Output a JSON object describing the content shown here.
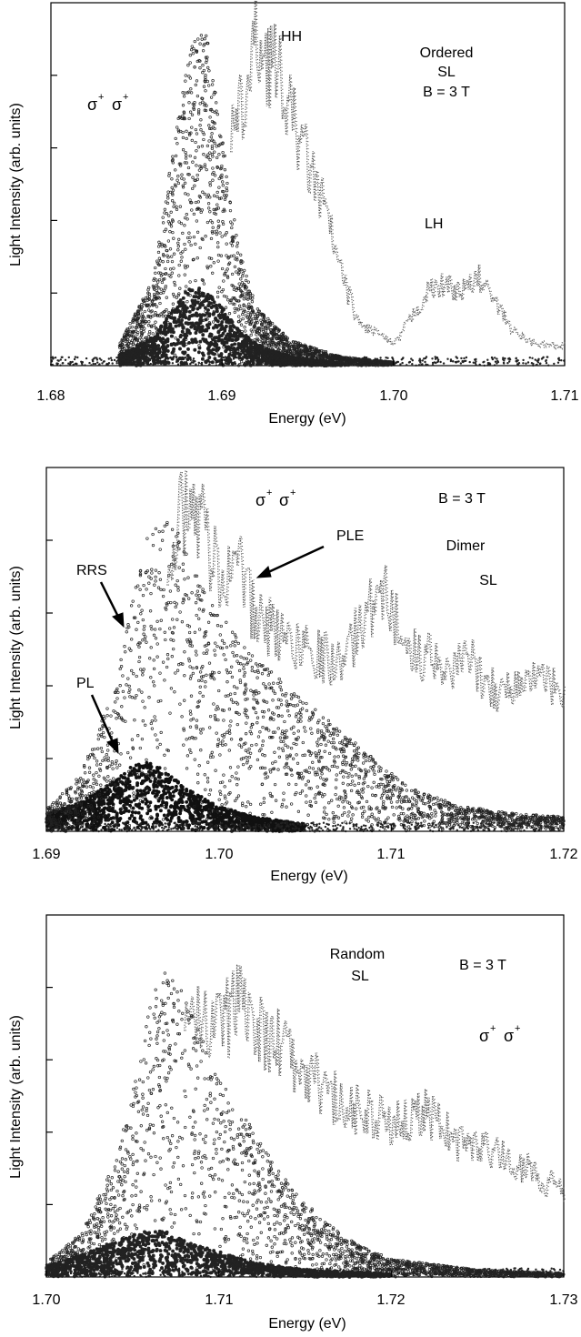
{
  "chart_data": [
    {
      "type": "scatter",
      "xlabel": "Energy (eV)",
      "ylabel": "Light Intensity (arb. units)",
      "xlim": [
        1.68,
        1.71
      ],
      "ylim": [
        0,
        5
      ],
      "xticks": [
        "1.68",
        "1.69",
        "1.70",
        "1.71"
      ],
      "yticks": [
        1,
        2,
        3,
        4
      ],
      "y_tick_labels_shown": false,
      "grid": false,
      "annotations": {
        "polarization": {
          "base": "σ",
          "sup": "+"
        },
        "hh": "HH",
        "lh": "LH",
        "sample": [
          "Ordered",
          "SL",
          "B = 3 T"
        ]
      },
      "series": [
        {
          "kind": "PL",
          "color": "#222222",
          "x": [
            1.684,
            1.686,
            1.687,
            1.688,
            1.6885,
            1.689,
            1.69,
            1.691,
            1.692,
            1.694,
            1.697
          ],
          "values": [
            0.15,
            0.4,
            0.75,
            1.05,
            1.1,
            1.05,
            0.8,
            0.5,
            0.3,
            0.12,
            0.03
          ]
        },
        {
          "kind": "RRS",
          "color": "#222222",
          "x": [
            1.684,
            1.686,
            1.687,
            1.688,
            1.6885,
            1.689,
            1.69,
            1.691,
            1.692,
            1.694,
            1.697,
            1.7
          ],
          "values": [
            0.3,
            1.2,
            2.8,
            4.2,
            4.6,
            4.7,
            3.2,
            1.6,
            0.8,
            0.35,
            0.12,
            0.05
          ]
        },
        {
          "kind": "PLE",
          "color": "#555555",
          "x": [
            1.6905,
            1.6915,
            1.692,
            1.6925,
            1.693,
            1.694,
            1.695,
            1.696,
            1.697,
            1.698,
            1.699,
            1.7,
            1.701,
            1.702,
            1.703,
            1.704,
            1.705,
            1.706,
            1.707,
            1.708,
            1.709,
            1.71
          ],
          "values": [
            3.3,
            4.1,
            4.9,
            4.6,
            4.5,
            3.7,
            3.0,
            2.3,
            1.3,
            0.6,
            0.5,
            0.3,
            0.7,
            1.1,
            1.2,
            1.1,
            1.3,
            0.9,
            0.5,
            0.35,
            0.3,
            0.3
          ]
        }
      ]
    },
    {
      "type": "scatter",
      "xlabel": "Energy (eV)",
      "ylabel": "Light Intensity (arb. units)",
      "xlim": [
        1.69,
        1.72
      ],
      "ylim": [
        0,
        5
      ],
      "xticks": [
        "1.69",
        "1.70",
        "1.71",
        "1.72"
      ],
      "yticks": [
        1,
        2,
        3,
        4
      ],
      "y_tick_labels_shown": false,
      "grid": false,
      "annotations": {
        "polarization": {
          "base": "σ",
          "sup": "+"
        },
        "b_field": "B = 3 T",
        "sample": [
          "Dimer",
          "SL"
        ],
        "ple": "PLE",
        "rrs": "RRS",
        "pl": "PL"
      },
      "series": [
        {
          "kind": "PL",
          "color": "#111111",
          "x": [
            1.69,
            1.692,
            1.694,
            1.695,
            1.696,
            1.697,
            1.698,
            1.7,
            1.702,
            1.705
          ],
          "values": [
            0.25,
            0.4,
            0.7,
            0.9,
            0.95,
            0.85,
            0.6,
            0.35,
            0.2,
            0.1
          ]
        },
        {
          "kind": "RRS",
          "color": "#222222",
          "x": [
            1.69,
            1.692,
            1.694,
            1.695,
            1.696,
            1.697,
            1.698,
            1.7,
            1.702,
            1.705,
            1.708,
            1.711,
            1.714,
            1.717,
            1.72
          ],
          "values": [
            0.3,
            0.8,
            2.0,
            3.2,
            4.2,
            4.3,
            4.0,
            3.0,
            2.4,
            1.8,
            1.2,
            0.6,
            0.35,
            0.25,
            0.2
          ]
        },
        {
          "kind": "PLE",
          "color": "#555555",
          "x": [
            1.697,
            1.698,
            1.699,
            1.7,
            1.701,
            1.702,
            1.703,
            1.704,
            1.705,
            1.706,
            1.707,
            1.708,
            1.709,
            1.71,
            1.711,
            1.712,
            1.713,
            1.714,
            1.715,
            1.716,
            1.717,
            1.718,
            1.719,
            1.72
          ],
          "values": [
            4.3,
            4.7,
            4.6,
            3.8,
            4.0,
            3.2,
            3.0,
            2.8,
            2.8,
            2.6,
            2.5,
            2.9,
            3.5,
            3.4,
            2.6,
            2.6,
            2.3,
            2.6,
            2.4,
            2.1,
            2.1,
            2.3,
            2.2,
            1.9
          ]
        }
      ]
    },
    {
      "type": "scatter",
      "xlabel": "Energy (eV)",
      "ylabel": "Light Intensity (arb. units)",
      "xlim": [
        1.7,
        1.73
      ],
      "ylim": [
        0,
        5
      ],
      "xticks": [
        "1.70",
        "1.71",
        "1.72",
        "1.73"
      ],
      "yticks": [
        1,
        2,
        3,
        4
      ],
      "y_tick_labels_shown": false,
      "grid": false,
      "annotations": {
        "polarization": {
          "base": "σ",
          "sup": "+"
        },
        "b_field": "B = 3 T",
        "sample": [
          "Random",
          "SL"
        ]
      },
      "series": [
        {
          "kind": "PL",
          "color": "#222222",
          "x": [
            1.7,
            1.702,
            1.704,
            1.706,
            1.707,
            1.708,
            1.71,
            1.712,
            1.715,
            1.72
          ],
          "values": [
            0.15,
            0.3,
            0.5,
            0.65,
            0.62,
            0.5,
            0.35,
            0.2,
            0.1,
            0.04
          ]
        },
        {
          "kind": "RRS",
          "color": "#222222",
          "x": [
            1.7,
            1.702,
            1.704,
            1.705,
            1.706,
            1.707,
            1.708,
            1.709,
            1.71,
            1.711,
            1.712,
            1.714,
            1.716,
            1.718,
            1.72,
            1.725,
            1.73
          ],
          "values": [
            0.2,
            0.6,
            1.6,
            2.6,
            3.8,
            4.3,
            3.9,
            3.3,
            2.8,
            2.5,
            2.0,
            1.3,
            0.8,
            0.45,
            0.25,
            0.1,
            0.05
          ]
        },
        {
          "kind": "PLE",
          "color": "#555555",
          "x": [
            1.708,
            1.709,
            1.71,
            1.711,
            1.7115,
            1.712,
            1.713,
            1.714,
            1.715,
            1.716,
            1.717,
            1.718,
            1.719,
            1.72,
            1.721,
            1.722,
            1.723,
            1.724,
            1.725,
            1.726,
            1.727,
            1.728,
            1.729,
            1.73
          ],
          "values": [
            3.6,
            3.9,
            3.7,
            4.0,
            4.3,
            3.8,
            3.5,
            3.4,
            3.0,
            2.8,
            2.6,
            2.5,
            2.4,
            2.2,
            2.4,
            2.5,
            2.2,
            2.0,
            1.9,
            1.8,
            1.7,
            1.6,
            1.4,
            1.3
          ]
        }
      ]
    }
  ]
}
